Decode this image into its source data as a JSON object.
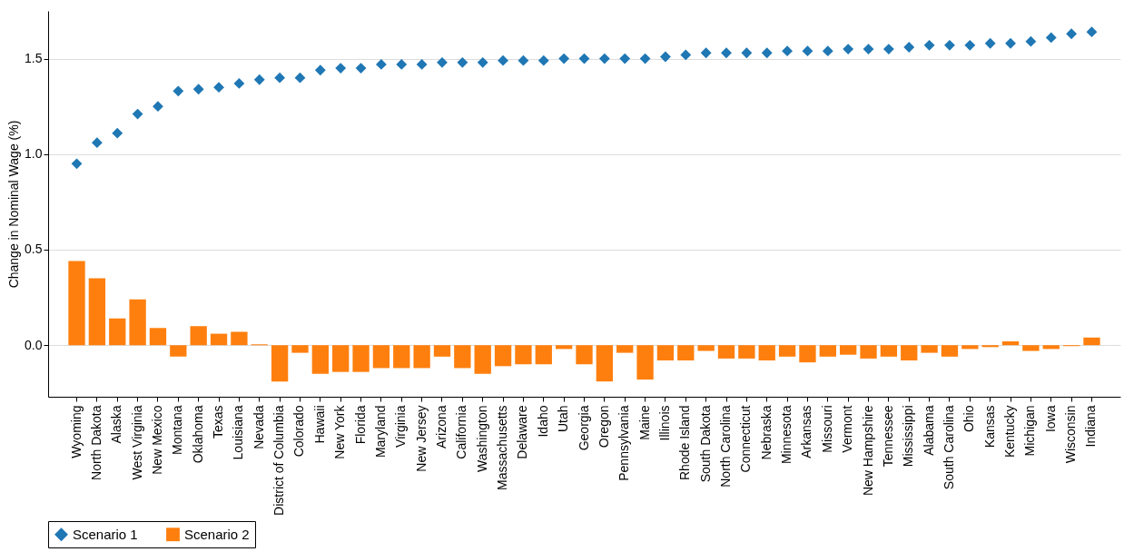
{
  "chart_data": {
    "type": "bar",
    "ylabel": "Change in Nominal Wage (%)",
    "categories": [
      "Wyoming",
      "North Dakota",
      "Alaska",
      "West Virginia",
      "New Mexico",
      "Montana",
      "Oklahoma",
      "Texas",
      "Louisiana",
      "Nevada",
      "District of Columbia",
      "Colorado",
      "Hawaii",
      "New York",
      "Florida",
      "Maryland",
      "Virginia",
      "New Jersey",
      "Arizona",
      "California",
      "Washington",
      "Massachusetts",
      "Delaware",
      "Idaho",
      "Utah",
      "Georgia",
      "Oregon",
      "Pennsylvania",
      "Maine",
      "Illinois",
      "Rhode Island",
      "South Dakota",
      "North Carolina",
      "Connecticut",
      "Nebraska",
      "Minnesota",
      "Arkansas",
      "Missouri",
      "Vermont",
      "New Hampshire",
      "Tennessee",
      "Mississippi",
      "Alabama",
      "South Carolina",
      "Ohio",
      "Kansas",
      "Kentucky",
      "Michigan",
      "Iowa",
      "Wisconsin",
      "Indiana"
    ],
    "series": [
      {
        "name": "Scenario 1",
        "type": "scatter",
        "marker": "diamond",
        "color": "#1f77b4",
        "values": [
          0.95,
          1.06,
          1.11,
          1.21,
          1.25,
          1.33,
          1.34,
          1.35,
          1.37,
          1.39,
          1.4,
          1.4,
          1.44,
          1.45,
          1.45,
          1.47,
          1.47,
          1.47,
          1.48,
          1.48,
          1.48,
          1.49,
          1.49,
          1.49,
          1.5,
          1.5,
          1.5,
          1.5,
          1.5,
          1.51,
          1.52,
          1.53,
          1.53,
          1.53,
          1.53,
          1.54,
          1.54,
          1.54,
          1.55,
          1.55,
          1.55,
          1.56,
          1.57,
          1.57,
          1.57,
          1.58,
          1.58,
          1.59,
          1.61,
          1.63,
          1.64
        ]
      },
      {
        "name": "Scenario 2",
        "color": "#ff7f0e",
        "values": [
          0.44,
          0.35,
          0.14,
          0.24,
          0.09,
          -0.06,
          0.1,
          0.06,
          0.07,
          0.005,
          -0.19,
          -0.04,
          -0.15,
          -0.14,
          -0.14,
          -0.12,
          -0.12,
          -0.12,
          -0.06,
          -0.12,
          -0.15,
          -0.11,
          -0.1,
          -0.1,
          -0.02,
          -0.1,
          -0.19,
          -0.04,
          -0.18,
          -0.08,
          -0.08,
          -0.03,
          -0.07,
          -0.07,
          -0.08,
          -0.06,
          -0.09,
          -0.06,
          -0.05,
          -0.07,
          -0.06,
          -0.08,
          -0.04,
          -0.06,
          -0.02,
          -0.01,
          0.02,
          -0.03,
          -0.02,
          -0.005,
          0.04
        ]
      }
    ],
    "ylim": [
      -0.27,
      1.75
    ],
    "yticks": [
      {
        "value": 0,
        "label": "0.0"
      },
      {
        "value": 0.5,
        "label": "0.5"
      },
      {
        "value": 1,
        "label": "1.0"
      },
      {
        "value": 1.5,
        "label": "1.5"
      }
    ],
    "grid": "y",
    "legend": "bottom"
  }
}
